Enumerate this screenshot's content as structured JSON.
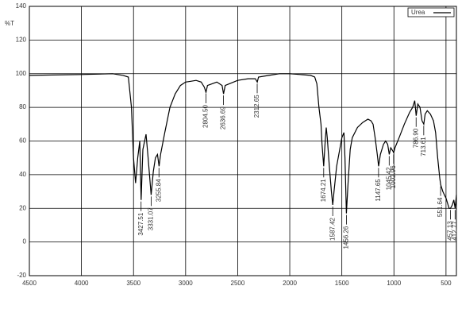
{
  "chart_data": {
    "type": "line",
    "ylabel": "%T",
    "x": [
      4500,
      4000,
      3700,
      3600,
      3550,
      3520,
      3500,
      3480,
      3460,
      3440,
      3427,
      3410,
      3380,
      3360,
      3331,
      3310,
      3290,
      3270,
      3255,
      3240,
      3200,
      3150,
      3100,
      3050,
      3000,
      2950,
      2900,
      2850,
      2820,
      2804,
      2790,
      2700,
      2650,
      2636,
      2620,
      2500,
      2400,
      2330,
      2312,
      2300,
      2200,
      2100,
      2000,
      1900,
      1800,
      1760,
      1740,
      1720,
      1700,
      1690,
      1674,
      1660,
      1650,
      1640,
      1620,
      1600,
      1587,
      1575,
      1550,
      1520,
      1500,
      1480,
      1470,
      1456,
      1440,
      1420,
      1400,
      1350,
      1300,
      1250,
      1220,
      1200,
      1180,
      1160,
      1147,
      1130,
      1100,
      1080,
      1060,
      1045,
      1030,
      1010,
      1002,
      990,
      950,
      900,
      850,
      820,
      800,
      786,
      770,
      750,
      730,
      713,
      700,
      680,
      650,
      620,
      600,
      580,
      560,
      551,
      530,
      500,
      480,
      470,
      457,
      440,
      425,
      412,
      400
    ],
    "series": [
      {
        "name": "Urea",
        "color": "#000000",
        "values": [
          99,
          99.5,
          100,
          99,
          98,
          80,
          50,
          35,
          50,
          60,
          25,
          55,
          64,
          50,
          28,
          42,
          50,
          52,
          45,
          52,
          65,
          80,
          88,
          93,
          95,
          95.5,
          96,
          95,
          92,
          89,
          93,
          95,
          93,
          88,
          93,
          96,
          97,
          97,
          95,
          98,
          99,
          100,
          100,
          99.5,
          99,
          98,
          94,
          80,
          70,
          58,
          45,
          60,
          68,
          62,
          45,
          30,
          22,
          30,
          45,
          55,
          62,
          65,
          50,
          17,
          35,
          55,
          62,
          68,
          71,
          73,
          72,
          70,
          62,
          52,
          45,
          52,
          58,
          60,
          58,
          52,
          56,
          54,
          53,
          56,
          62,
          70,
          77,
          80,
          84,
          75,
          82,
          80,
          72,
          70,
          76,
          78,
          76,
          72,
          65,
          50,
          38,
          34,
          30,
          26,
          22,
          20,
          20,
          22,
          25,
          20,
          28
        ]
      }
    ],
    "annotations": [
      {
        "x": 3427.51,
        "y": 25,
        "label": "3427.51"
      },
      {
        "x": 3331.07,
        "y": 28,
        "label": "3331.07"
      },
      {
        "x": 3255.84,
        "y": 45,
        "label": "3255.84"
      },
      {
        "x": 2804.5,
        "y": 89,
        "label": "2804.50"
      },
      {
        "x": 2636.69,
        "y": 88,
        "label": "2636.69"
      },
      {
        "x": 2312.65,
        "y": 95,
        "label": "2312.65"
      },
      {
        "x": 1674.21,
        "y": 45,
        "label": "1674.21"
      },
      {
        "x": 1587.42,
        "y": 22,
        "label": "1587.42"
      },
      {
        "x": 1456.26,
        "y": 17,
        "label": "1456.26"
      },
      {
        "x": 1147.65,
        "y": 45,
        "label": "1147.65"
      },
      {
        "x": 1045.42,
        "y": 52,
        "label": "1045.42"
      },
      {
        "x": 1002.96,
        "y": 53,
        "label": "1002.96"
      },
      {
        "x": 786.9,
        "y": 75,
        "label": "786.90"
      },
      {
        "x": 713.61,
        "y": 70,
        "label": "713.61"
      },
      {
        "x": 551.64,
        "y": 34,
        "label": "551.64"
      },
      {
        "x": 457.13,
        "y": 20,
        "label": "457.13"
      },
      {
        "x": 412.77,
        "y": 20,
        "label": "412.77"
      }
    ],
    "xlim": [
      4500,
      400
    ],
    "xticks": [
      4500,
      4000,
      3500,
      3000,
      2500,
      2000,
      1500,
      1000,
      500
    ],
    "ylim": [
      -20,
      140
    ],
    "yticks": [
      -20,
      0,
      20,
      40,
      60,
      80,
      100,
      120,
      140
    ],
    "grid": true
  }
}
